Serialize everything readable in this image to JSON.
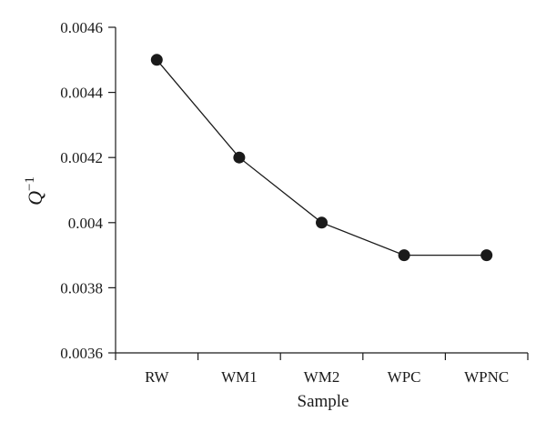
{
  "chart_data": {
    "type": "line",
    "categories": [
      "RW",
      "WM1",
      "WM2",
      "WPC",
      "WPNC"
    ],
    "values": [
      0.0045,
      0.0042,
      0.004,
      0.0039,
      0.0039
    ],
    "title": "",
    "xlabel": "Sample",
    "ylabel_base": "Q",
    "ylabel_exponent": "−1",
    "ylim": [
      0.0036,
      0.0046
    ],
    "yticks": [
      0.0036,
      0.0038,
      0.004,
      0.0042,
      0.0044,
      0.0046
    ],
    "ytick_labels": [
      "0.0036",
      "0.0038",
      "0.004",
      "0.0042",
      "0.0044",
      "0.0046"
    ],
    "grid": false,
    "legend": "none",
    "colors": {
      "line": "#1a1a1a",
      "marker": "#1a1a1a",
      "axis": "#1a1a1a"
    }
  }
}
